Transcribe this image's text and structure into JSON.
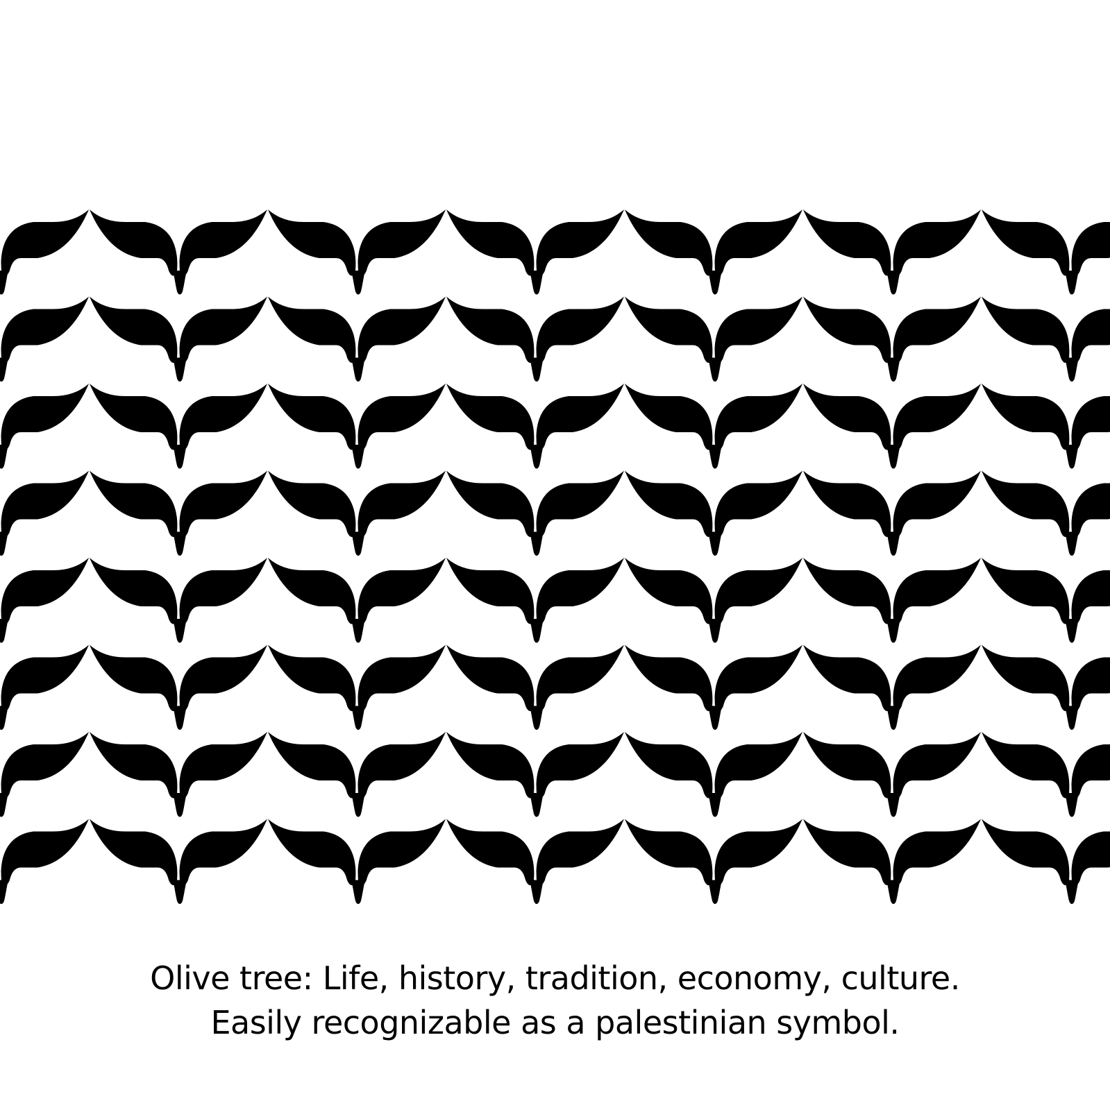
{
  "colors": {
    "background": "#ffffff",
    "motif": "#000000",
    "text": "#000000"
  },
  "pattern": {
    "motif_name": "olive-leaf-pair",
    "rows": 8,
    "columns": 7
  },
  "caption": {
    "line1": "Olive tree: Life, history, tradition, economy, culture.",
    "line2": "Easily recognizable as a palestinian symbol."
  }
}
